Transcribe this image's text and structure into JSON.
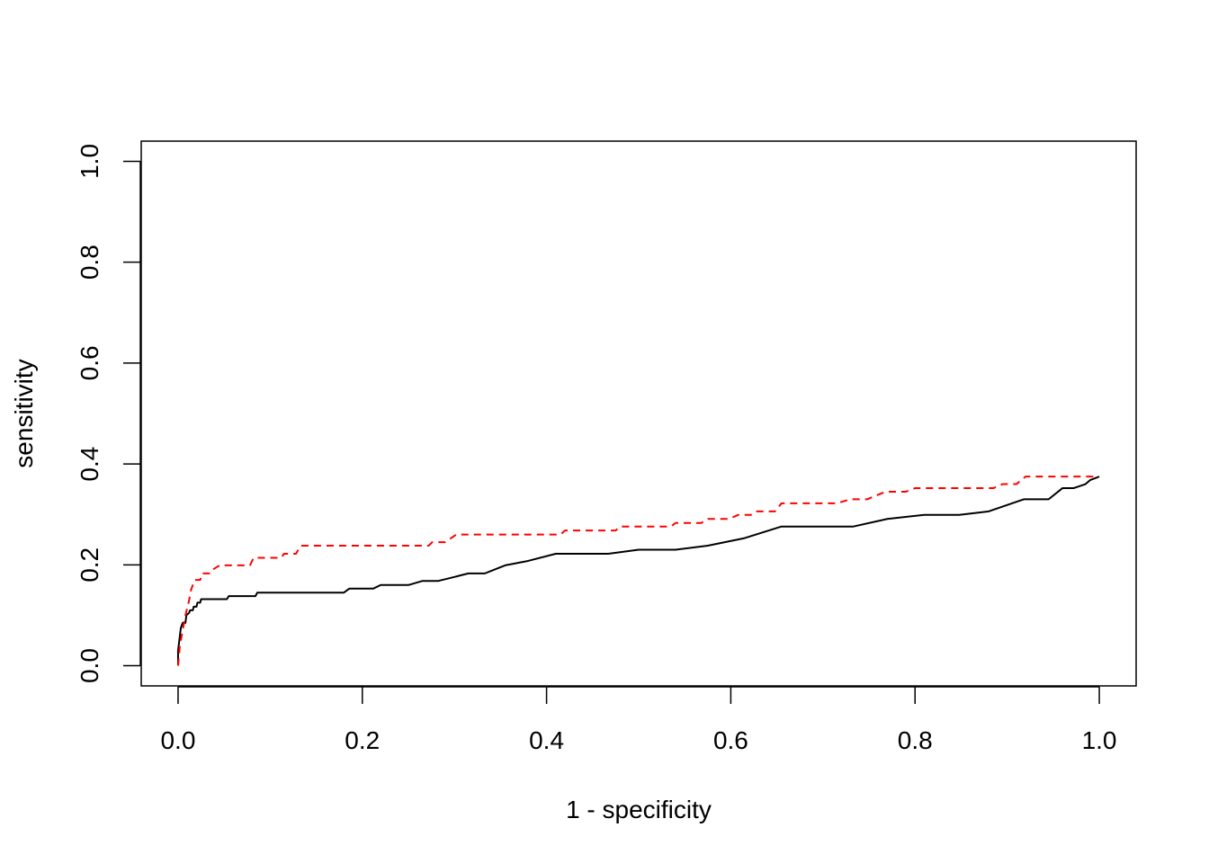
{
  "chart_data": {
    "type": "line",
    "title": "",
    "xlabel": "1 - specificity",
    "ylabel": "sensitivity",
    "xlim": [
      -0.04,
      1.04
    ],
    "ylim": [
      -0.04,
      1.04
    ],
    "x_ticks": [
      "0.0",
      "0.2",
      "0.4",
      "0.6",
      "0.8",
      "1.0"
    ],
    "y_ticks": [
      "0.0",
      "0.2",
      "0.4",
      "0.6",
      "0.8",
      "1.0"
    ],
    "grid": false,
    "legend": "none",
    "series": [
      {
        "color": "#000000",
        "style": "solid",
        "points": [
          [
            0.0,
            0.0
          ],
          [
            0.0,
            0.03
          ],
          [
            0.002,
            0.06
          ],
          [
            0.003,
            0.075
          ],
          [
            0.005,
            0.085
          ],
          [
            0.008,
            0.085
          ],
          [
            0.009,
            0.1
          ],
          [
            0.012,
            0.105
          ],
          [
            0.013,
            0.11
          ],
          [
            0.016,
            0.11
          ],
          [
            0.017,
            0.117
          ],
          [
            0.02,
            0.117
          ],
          [
            0.021,
            0.125
          ],
          [
            0.024,
            0.125
          ],
          [
            0.025,
            0.132
          ],
          [
            0.053,
            0.132
          ],
          [
            0.055,
            0.138
          ],
          [
            0.084,
            0.138
          ],
          [
            0.086,
            0.145
          ],
          [
            0.18,
            0.145
          ],
          [
            0.186,
            0.153
          ],
          [
            0.212,
            0.153
          ],
          [
            0.22,
            0.16
          ],
          [
            0.25,
            0.16
          ],
          [
            0.265,
            0.168
          ],
          [
            0.282,
            0.168
          ],
          [
            0.3,
            0.176
          ],
          [
            0.315,
            0.183
          ],
          [
            0.333,
            0.183
          ],
          [
            0.355,
            0.199
          ],
          [
            0.378,
            0.207
          ],
          [
            0.41,
            0.222
          ],
          [
            0.467,
            0.222
          ],
          [
            0.5,
            0.23
          ],
          [
            0.54,
            0.23
          ],
          [
            0.575,
            0.238
          ],
          [
            0.615,
            0.253
          ],
          [
            0.655,
            0.276
          ],
          [
            0.733,
            0.276
          ],
          [
            0.77,
            0.291
          ],
          [
            0.81,
            0.299
          ],
          [
            0.848,
            0.299
          ],
          [
            0.88,
            0.306
          ],
          [
            0.918,
            0.33
          ],
          [
            0.945,
            0.33
          ],
          [
            0.96,
            0.352
          ],
          [
            0.972,
            0.352
          ],
          [
            0.985,
            0.36
          ],
          [
            0.99,
            0.368
          ],
          [
            1.0,
            0.375
          ]
        ]
      },
      {
        "color": "#ff0000",
        "style": "dashed",
        "points": [
          [
            0.0,
            0.0
          ],
          [
            0.002,
            0.04
          ],
          [
            0.005,
            0.07
          ],
          [
            0.008,
            0.1
          ],
          [
            0.012,
            0.13
          ],
          [
            0.014,
            0.15
          ],
          [
            0.018,
            0.17
          ],
          [
            0.024,
            0.17
          ],
          [
            0.026,
            0.183
          ],
          [
            0.035,
            0.183
          ],
          [
            0.038,
            0.191
          ],
          [
            0.045,
            0.199
          ],
          [
            0.078,
            0.199
          ],
          [
            0.082,
            0.214
          ],
          [
            0.112,
            0.214
          ],
          [
            0.115,
            0.222
          ],
          [
            0.128,
            0.222
          ],
          [
            0.133,
            0.238
          ],
          [
            0.272,
            0.238
          ],
          [
            0.276,
            0.245
          ],
          [
            0.29,
            0.245
          ],
          [
            0.302,
            0.26
          ],
          [
            0.415,
            0.26
          ],
          [
            0.42,
            0.268
          ],
          [
            0.475,
            0.268
          ],
          [
            0.48,
            0.276
          ],
          [
            0.535,
            0.276
          ],
          [
            0.54,
            0.283
          ],
          [
            0.568,
            0.283
          ],
          [
            0.575,
            0.291
          ],
          [
            0.598,
            0.291
          ],
          [
            0.608,
            0.299
          ],
          [
            0.622,
            0.299
          ],
          [
            0.628,
            0.306
          ],
          [
            0.648,
            0.306
          ],
          [
            0.655,
            0.322
          ],
          [
            0.715,
            0.322
          ],
          [
            0.73,
            0.33
          ],
          [
            0.748,
            0.33
          ],
          [
            0.768,
            0.345
          ],
          [
            0.79,
            0.345
          ],
          [
            0.8,
            0.352
          ],
          [
            0.885,
            0.352
          ],
          [
            0.895,
            0.36
          ],
          [
            0.91,
            0.36
          ],
          [
            0.92,
            0.375
          ],
          [
            1.0,
            0.375
          ]
        ]
      }
    ]
  }
}
